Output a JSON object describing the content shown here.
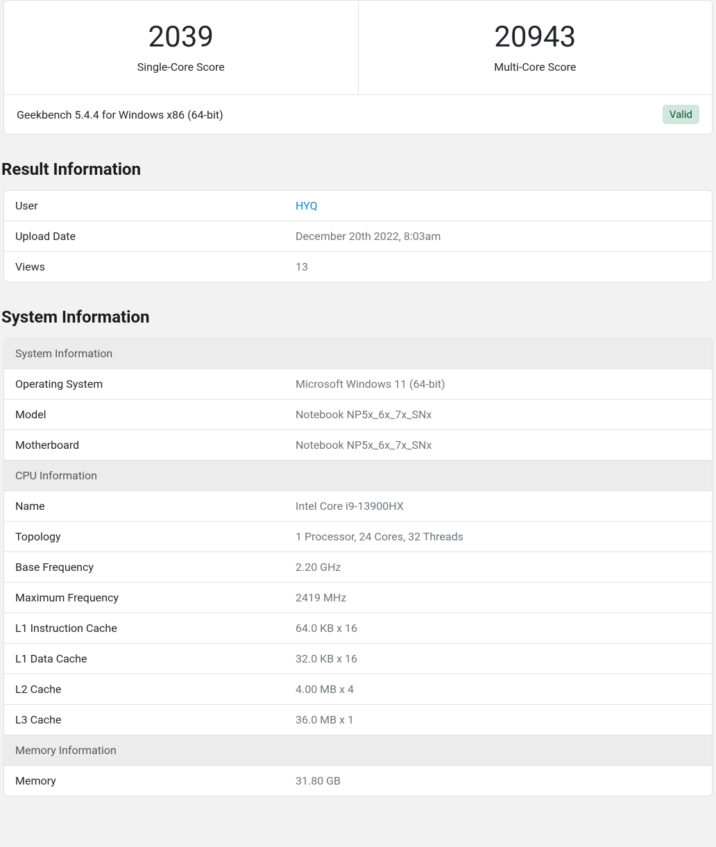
{
  "scores": {
    "single": {
      "value": "2039",
      "label": "Single-Core Score"
    },
    "multi": {
      "value": "20943",
      "label": "Multi-Core Score"
    }
  },
  "version": {
    "text": "Geekbench 5.4.4 for Windows x86 (64-bit)",
    "badge": "Valid"
  },
  "result_info": {
    "title": "Result Information",
    "rows": {
      "user_key": "User",
      "user_val": "HYQ",
      "upload_key": "Upload Date",
      "upload_val": "December 20th 2022, 8:03am",
      "views_key": "Views",
      "views_val": "13"
    }
  },
  "system_info": {
    "title": "System Information",
    "headers": {
      "sys": "System Information",
      "cpu": "CPU Information",
      "mem": "Memory Information"
    },
    "sys": {
      "os_key": "Operating System",
      "os_val": "Microsoft Windows 11 (64-bit)",
      "model_key": "Model",
      "model_val": "Notebook NP5x_6x_7x_SNx",
      "mb_key": "Motherboard",
      "mb_val": "Notebook NP5x_6x_7x_SNx"
    },
    "cpu": {
      "name_key": "Name",
      "name_val": "Intel Core i9-13900HX",
      "topo_key": "Topology",
      "topo_val": "1 Processor, 24 Cores, 32 Threads",
      "base_key": "Base Frequency",
      "base_val": "2.20 GHz",
      "max_key": "Maximum Frequency",
      "max_val": "2419 MHz",
      "l1i_key": "L1 Instruction Cache",
      "l1i_val": "64.0 KB x 16",
      "l1d_key": "L1 Data Cache",
      "l1d_val": "32.0 KB x 16",
      "l2_key": "L2 Cache",
      "l2_val": "4.00 MB x 4",
      "l3_key": "L3 Cache",
      "l3_val": "36.0 MB x 1"
    },
    "mem": {
      "mem_key": "Memory",
      "mem_val": "31.80 GB"
    }
  },
  "colors": {
    "bg": "#f2f2f2",
    "card_bg": "#ffffff",
    "border": "#dee2e6",
    "header_bg": "#ececec",
    "text_primary": "#212529",
    "text_muted": "#6c757d",
    "link": "#0d87c7",
    "badge_bg": "#d1e7dd",
    "badge_text": "#0f5132"
  }
}
